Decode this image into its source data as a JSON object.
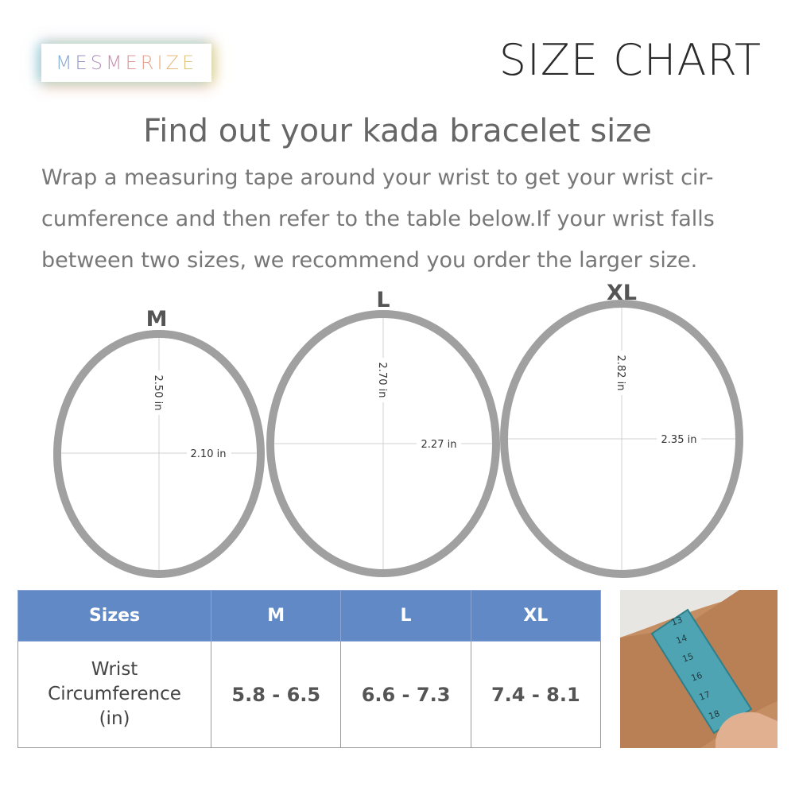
{
  "brand": {
    "logo_text": "MESMERIZE"
  },
  "header": {
    "title": "SIZE CHART"
  },
  "heading": "Find out your kada bracelet size",
  "description": [
    "Wrap a measuring tape around your wrist to get your wrist cir-",
    "cumference and then refer to the table below.If your wrist falls",
    "between two sizes, we recommend you order the larger size."
  ],
  "bracelets": [
    {
      "size": "M",
      "height": "2.50 in",
      "width": "2.10 in"
    },
    {
      "size": "L",
      "height": "2.70 in",
      "width": "2.27 in"
    },
    {
      "size": "XL",
      "height": "2.82 in",
      "width": "2.35 in"
    }
  ],
  "table": {
    "headers": [
      "Sizes",
      "M",
      "L",
      "XL"
    ],
    "row_label": [
      "Wrist",
      "Circumference",
      "(in)"
    ],
    "values": [
      "5.8 - 6.5",
      "6.6 - 7.3",
      "7.4 - 8.1"
    ]
  },
  "photo": {
    "tape_numbers": [
      "13",
      "14",
      "15",
      "16",
      "17",
      "18"
    ]
  },
  "colors": {
    "header_bg": "#6189c6",
    "ring": "#a0a0a0"
  }
}
